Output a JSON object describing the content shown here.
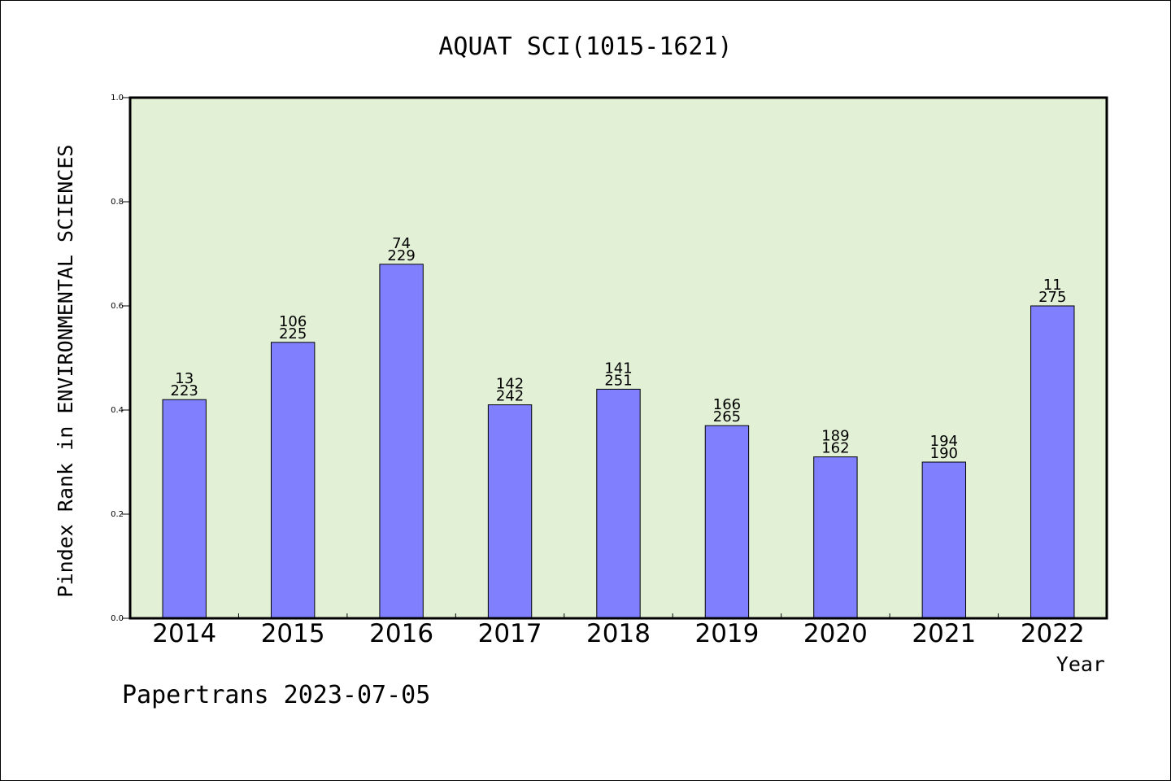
{
  "chart_data": {
    "type": "bar",
    "title": "AQUAT SCI(1015-1621)",
    "xlabel": "Year",
    "ylabel": "Pindex Rank in ENVIRONMENTAL SCIENCES",
    "footer": "Papertrans 2023-07-05",
    "categories": [
      "2014",
      "2015",
      "2016",
      "2017",
      "2018",
      "2019",
      "2020",
      "2021",
      "2022"
    ],
    "values": [
      0.42,
      0.53,
      0.68,
      0.41,
      0.44,
      0.37,
      0.31,
      0.3,
      0.6
    ],
    "labels_top": [
      "13",
      "106",
      "74",
      "142",
      "141",
      "166",
      "189",
      "194",
      "11"
    ],
    "labels_bottom": [
      "223",
      "225",
      "229",
      "242",
      "251",
      "265",
      "162",
      "190",
      "275"
    ],
    "ylim": [
      0,
      1.0
    ],
    "yticks": [
      "0.0",
      "0.2",
      "0.4",
      "0.6",
      "0.8",
      "1.0"
    ],
    "grid": false,
    "colors": {
      "bar": "#8080ff",
      "plot_background": "#e2f0d6",
      "axis": "#000000"
    }
  }
}
